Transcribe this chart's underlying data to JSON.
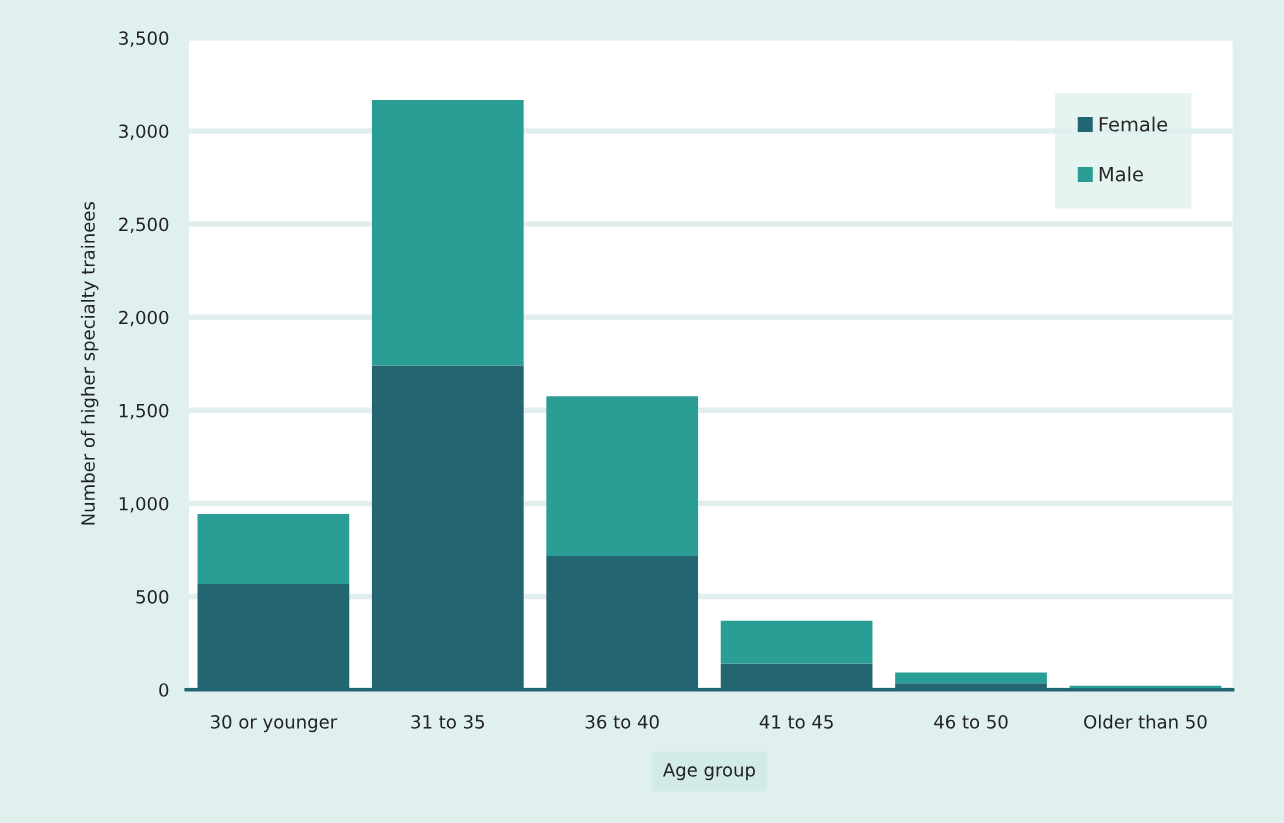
{
  "chart_data": {
    "type": "bar",
    "stacked": true,
    "xlabel": "Age group",
    "ylabel": "Number of higher specialty trainees",
    "categories": [
      "30 or younger",
      "31 to 35",
      "36 to 40",
      "41 to 45",
      "46 to 50",
      "Older than 50"
    ],
    "series": [
      {
        "name": "Female",
        "color": "#236570",
        "values": [
          568,
          1741,
          718,
          141,
          34,
          8
        ]
      },
      {
        "name": "Male",
        "color": "#2a9d94",
        "values": [
          375,
          1425,
          857,
          229,
          58,
          13
        ]
      }
    ],
    "ylim": [
      0,
      3500
    ],
    "yticks": [
      {
        "value": 0,
        "label": "0"
      },
      {
        "value": 500,
        "label": "500"
      },
      {
        "value": 1000,
        "label": "1,000"
      },
      {
        "value": 1500,
        "label": "1,500"
      },
      {
        "value": 2000,
        "label": "2,000"
      },
      {
        "value": 2500,
        "label": "2,500"
      },
      {
        "value": 3000,
        "label": "3,000"
      },
      {
        "value": 3500,
        "label": "3,500"
      }
    ],
    "grid": "y",
    "legend": "top right"
  }
}
